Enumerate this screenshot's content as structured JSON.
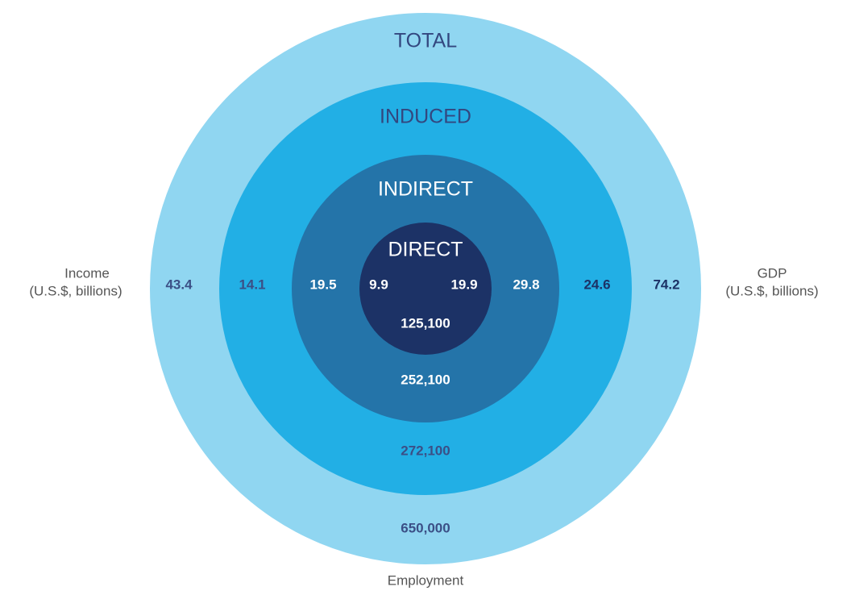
{
  "rings": [
    {
      "name": "TOTAL",
      "income": "43.4",
      "gdp": "74.2",
      "employment": "650,000"
    },
    {
      "name": "INDUCED",
      "income": "14.1",
      "gdp": "24.6",
      "employment": "272,100"
    },
    {
      "name": "INDIRECT",
      "income": "19.5",
      "gdp": "29.8",
      "employment": "252,100"
    },
    {
      "name": "DIRECT",
      "income": "9.9",
      "gdp": "19.9",
      "employment": "125,100"
    }
  ],
  "labels": {
    "income": [
      "Income",
      "(U.S.$, billions)"
    ],
    "gdp": [
      "GDP",
      "(U.S.$, billions)"
    ],
    "employment": "Employment"
  }
}
